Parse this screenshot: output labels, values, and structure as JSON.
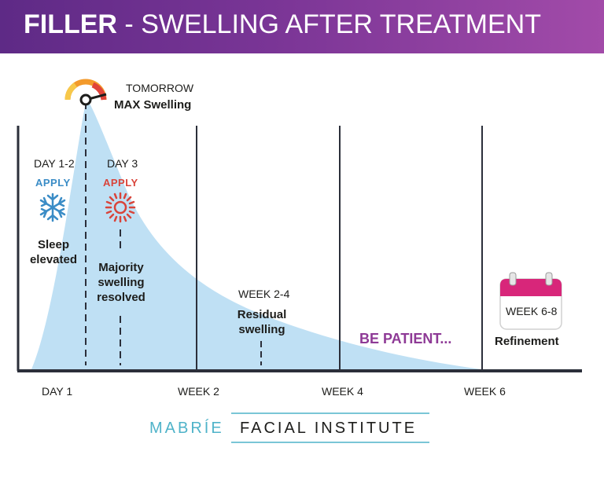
{
  "header": {
    "brand": "FILLER",
    "title_rest": " - SWELLING AFTER TREATMENT"
  },
  "peak": {
    "line1": "TOMORROW",
    "line2": "MAX Swelling"
  },
  "stages": {
    "day12": {
      "label": "DAY 1-2",
      "apply": "APPLY",
      "icon": "snowflake-icon",
      "note_line1": "Sleep",
      "note_line2": "elevated"
    },
    "day3": {
      "label": "DAY 3",
      "apply": "APPLY",
      "icon": "heat-icon",
      "note_line1": "Majority",
      "note_line2": "swelling",
      "note_line3": "resolved"
    },
    "week24": {
      "label": "WEEK 2-4",
      "note_line1": "Residual",
      "note_line2": "swelling"
    },
    "week68": {
      "label": "WEEK 6-8",
      "note": "Refinement",
      "icon": "calendar-icon"
    }
  },
  "be_patient": "BE PATIENT...",
  "axis": {
    "ticks": [
      "DAY 1",
      "WEEK 2",
      "WEEK 4",
      "WEEK 6"
    ]
  },
  "logo": {
    "part1": "MABRÍE",
    "part2": "FACIAL INSTITUTE"
  },
  "colors": {
    "header_purple": "#6b2f8e",
    "curve_fill": "#bfe0f4",
    "cold_blue": "#3a8cc6",
    "heat_red": "#d9443a",
    "calendar_pink": "#d8267a",
    "patient_purple": "#8e3a96",
    "logo_teal": "#4fb3c9"
  }
}
